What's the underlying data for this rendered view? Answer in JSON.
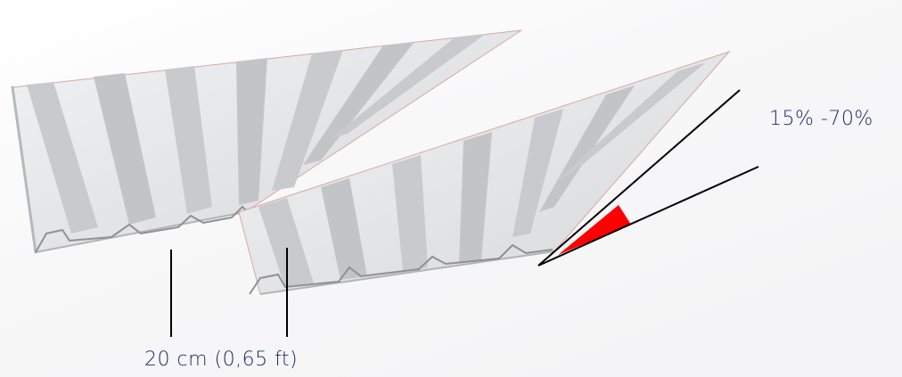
{
  "diagram": {
    "slope_range": "15% -70%",
    "overlap_length": "20 cm (0,65 ft)",
    "colors": {
      "sheet_light": "#e4e5e7",
      "sheet_mid": "#c9cbce",
      "sheet_dark": "#a7aaae",
      "edge": "#d9a7a0",
      "angle_fill": "#ff0000",
      "line": "#000000",
      "text": "#1d2a6b"
    }
  }
}
